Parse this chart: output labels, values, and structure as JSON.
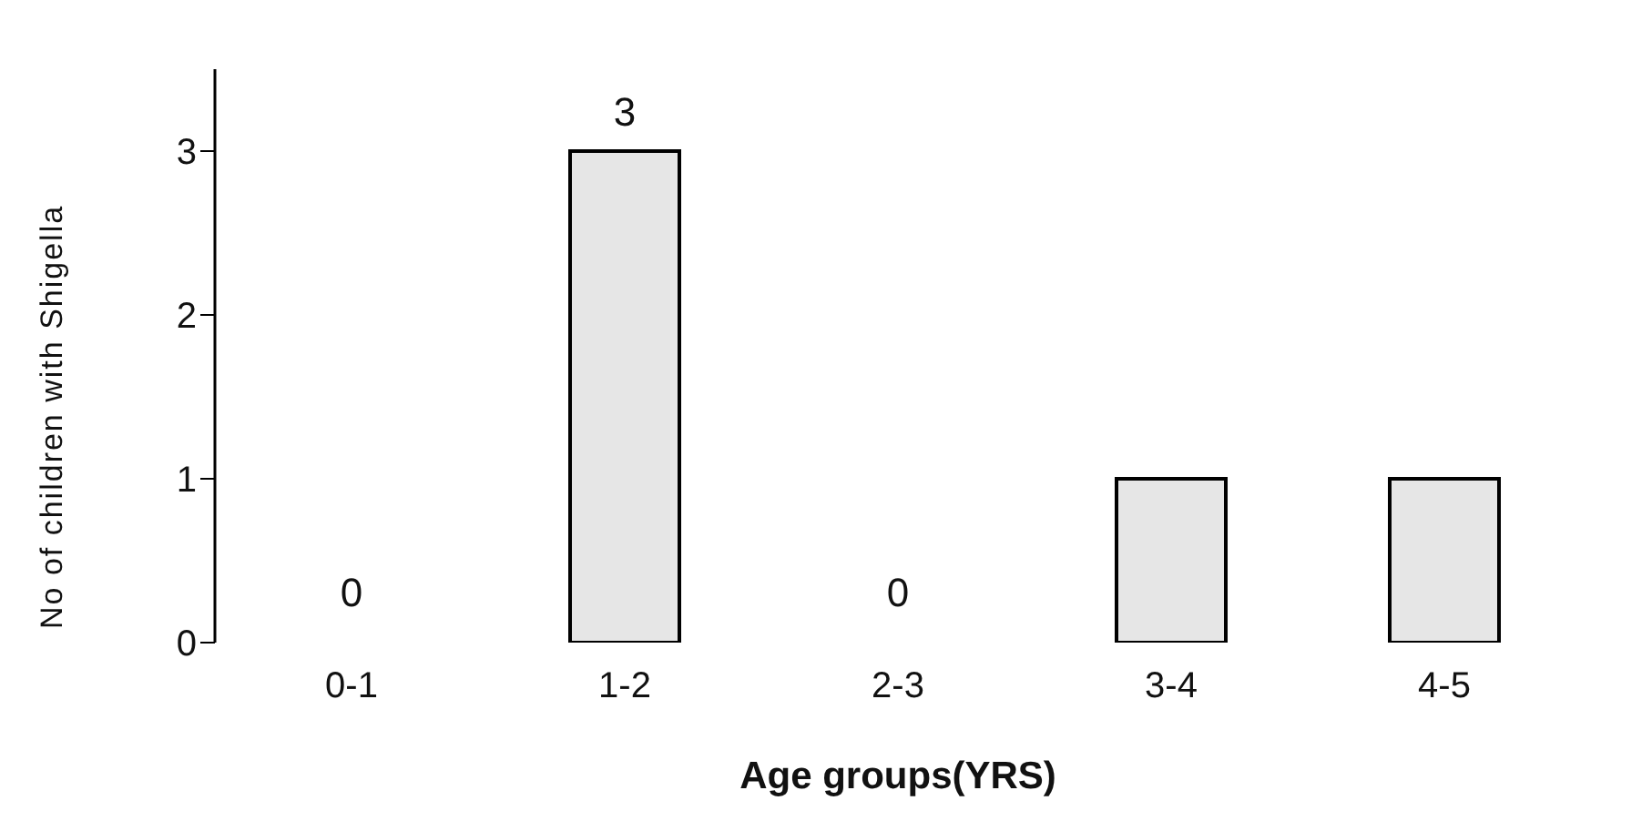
{
  "chart_data": {
    "type": "bar",
    "xlabel": "Age groups(YRS)",
    "ylabel": "No of children with Shigella",
    "categories": [
      "0-1",
      "1-2",
      "2-3",
      "3-4",
      "4-5"
    ],
    "values": [
      0,
      3,
      0,
      1,
      1
    ],
    "value_labels": [
      "0",
      "3",
      "0",
      null,
      null
    ],
    "color": "#e6e6e6",
    "ylim": [
      0,
      3.5
    ],
    "yticks": [
      0,
      1,
      2,
      3
    ],
    "grid": false
  }
}
